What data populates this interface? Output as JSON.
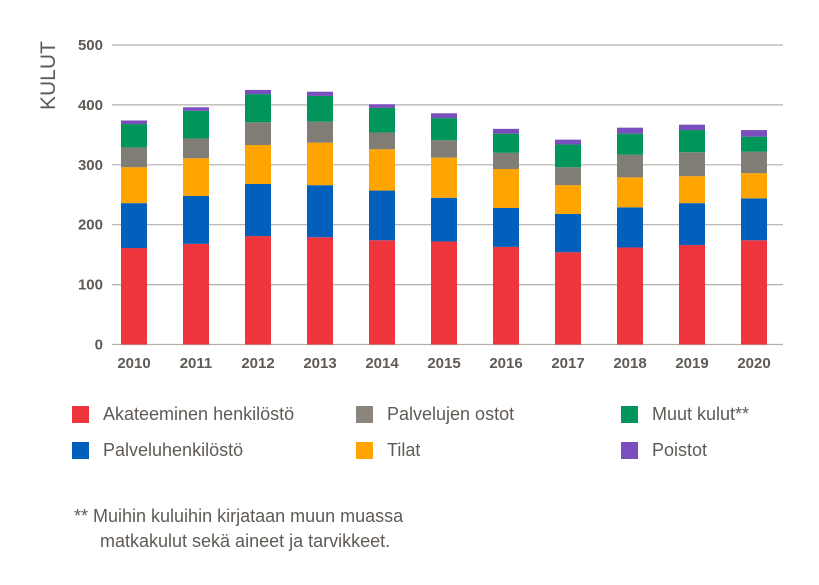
{
  "chart_data": {
    "type": "bar",
    "stacked": true,
    "title": "",
    "xlabel": "",
    "ylabel": "KULUT",
    "ylim": [
      0,
      500
    ],
    "yticks": [
      0,
      100,
      200,
      300,
      400,
      500
    ],
    "grid": true,
    "legend_position": "bottom",
    "categories": [
      "2010",
      "2011",
      "2012",
      "2013",
      "2014",
      "2015",
      "2016",
      "2017",
      "2018",
      "2019",
      "2020"
    ],
    "series": [
      {
        "name": "Akateeminen henkilöstö",
        "color": "#ee343d",
        "values": [
          161,
          168,
          181,
          179,
          174,
          172,
          163,
          154,
          162,
          166,
          174
        ]
      },
      {
        "name": "Palveluhenkilöstö",
        "color": "#0060bb",
        "values": [
          75,
          80,
          87,
          87,
          83,
          73,
          65,
          64,
          67,
          70,
          70
        ]
      },
      {
        "name": "Tilat",
        "color": "#ffa400",
        "values": [
          60,
          63,
          65,
          71,
          69,
          67,
          65,
          48,
          50,
          45,
          42
        ]
      },
      {
        "name": "Palvelujen ostot",
        "color": "#807c76",
        "values": [
          33,
          33,
          38,
          35,
          28,
          29,
          27,
          30,
          38,
          40,
          36
        ]
      },
      {
        "name": "Muut kulut**",
        "color": "#00955b",
        "values": [
          39,
          46,
          47,
          43,
          41,
          37,
          32,
          38,
          35,
          37,
          25
        ]
      },
      {
        "name": "Poistot",
        "color": "#7a4fbd",
        "values": [
          6,
          6,
          7,
          7,
          6,
          8,
          8,
          8,
          10,
          9,
          11
        ]
      }
    ]
  },
  "legend": {
    "items": [
      {
        "label": "Akateeminen henkilöstö",
        "color": "#ee343d"
      },
      {
        "label": "Palvelujen ostot",
        "color": "#8b857e"
      },
      {
        "label": "Muut kulut**",
        "color": "#00955b"
      },
      {
        "label": "Palveluhenkilöstö",
        "color": "#0060bb"
      },
      {
        "label": "Tilat",
        "color": "#ffa400"
      },
      {
        "label": "Poistot",
        "color": "#7a4fbd"
      }
    ]
  },
  "footnote": {
    "line1": "** Muihin kuluihin kirjataan muun muassa",
    "line2": "matkakulut sekä aineet ja tarvikkeet."
  }
}
